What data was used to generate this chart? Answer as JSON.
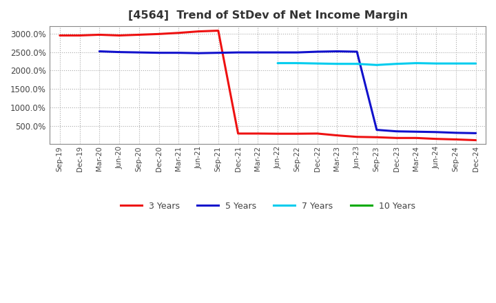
{
  "title": "[4564]  Trend of StDev of Net Income Margin",
  "background_color": "#ffffff",
  "plot_bg_color": "#ffffff",
  "grid_color": "#aaaaaa",
  "x_labels": [
    "Sep-19",
    "Dec-19",
    "Mar-20",
    "Jun-20",
    "Sep-20",
    "Dec-20",
    "Mar-21",
    "Jun-21",
    "Sep-21",
    "Dec-21",
    "Mar-22",
    "Jun-22",
    "Sep-22",
    "Dec-22",
    "Mar-23",
    "Jun-23",
    "Sep-23",
    "Dec-23",
    "Mar-24",
    "Jun-24",
    "Sep-24",
    "Dec-24"
  ],
  "series": {
    "3 Years": {
      "color": "#ee1111",
      "values": [
        2950,
        2950,
        2970,
        2950,
        2970,
        2990,
        3020,
        3060,
        3080,
        290,
        290,
        285,
        285,
        290,
        240,
        200,
        190,
        170,
        170,
        145,
        130,
        110
      ]
    },
    "5 Years": {
      "color": "#1111cc",
      "values": [
        null,
        null,
        2520,
        2500,
        2490,
        2480,
        2480,
        2470,
        2480,
        2490,
        2490,
        2490,
        2490,
        2510,
        2520,
        2510,
        390,
        350,
        340,
        330,
        310,
        300
      ]
    },
    "7 Years": {
      "color": "#00ccee",
      "values": [
        null,
        null,
        null,
        null,
        null,
        null,
        null,
        null,
        null,
        null,
        null,
        2200,
        2200,
        2190,
        2180,
        2180,
        2150,
        2180,
        2200,
        2190,
        2190,
        2190
      ]
    },
    "10 Years": {
      "color": "#00aa00",
      "values": [
        null,
        null,
        null,
        null,
        null,
        null,
        null,
        null,
        null,
        null,
        null,
        null,
        null,
        null,
        null,
        null,
        null,
        null,
        null,
        null,
        null,
        null
      ]
    }
  },
  "ylim": [
    0,
    3200
  ],
  "yticks": [
    500,
    1000,
    1500,
    2000,
    2500,
    3000
  ],
  "ytick_labels": [
    "500.0%",
    "1000.0%",
    "1500.0%",
    "2000.0%",
    "2500.0%",
    "3000.0%"
  ],
  "legend_labels": [
    "3 Years",
    "5 Years",
    "7 Years",
    "10 Years"
  ],
  "legend_colors": [
    "#ee1111",
    "#1111cc",
    "#00ccee",
    "#00aa00"
  ],
  "title_color": "#333333",
  "tick_color": "#444444"
}
